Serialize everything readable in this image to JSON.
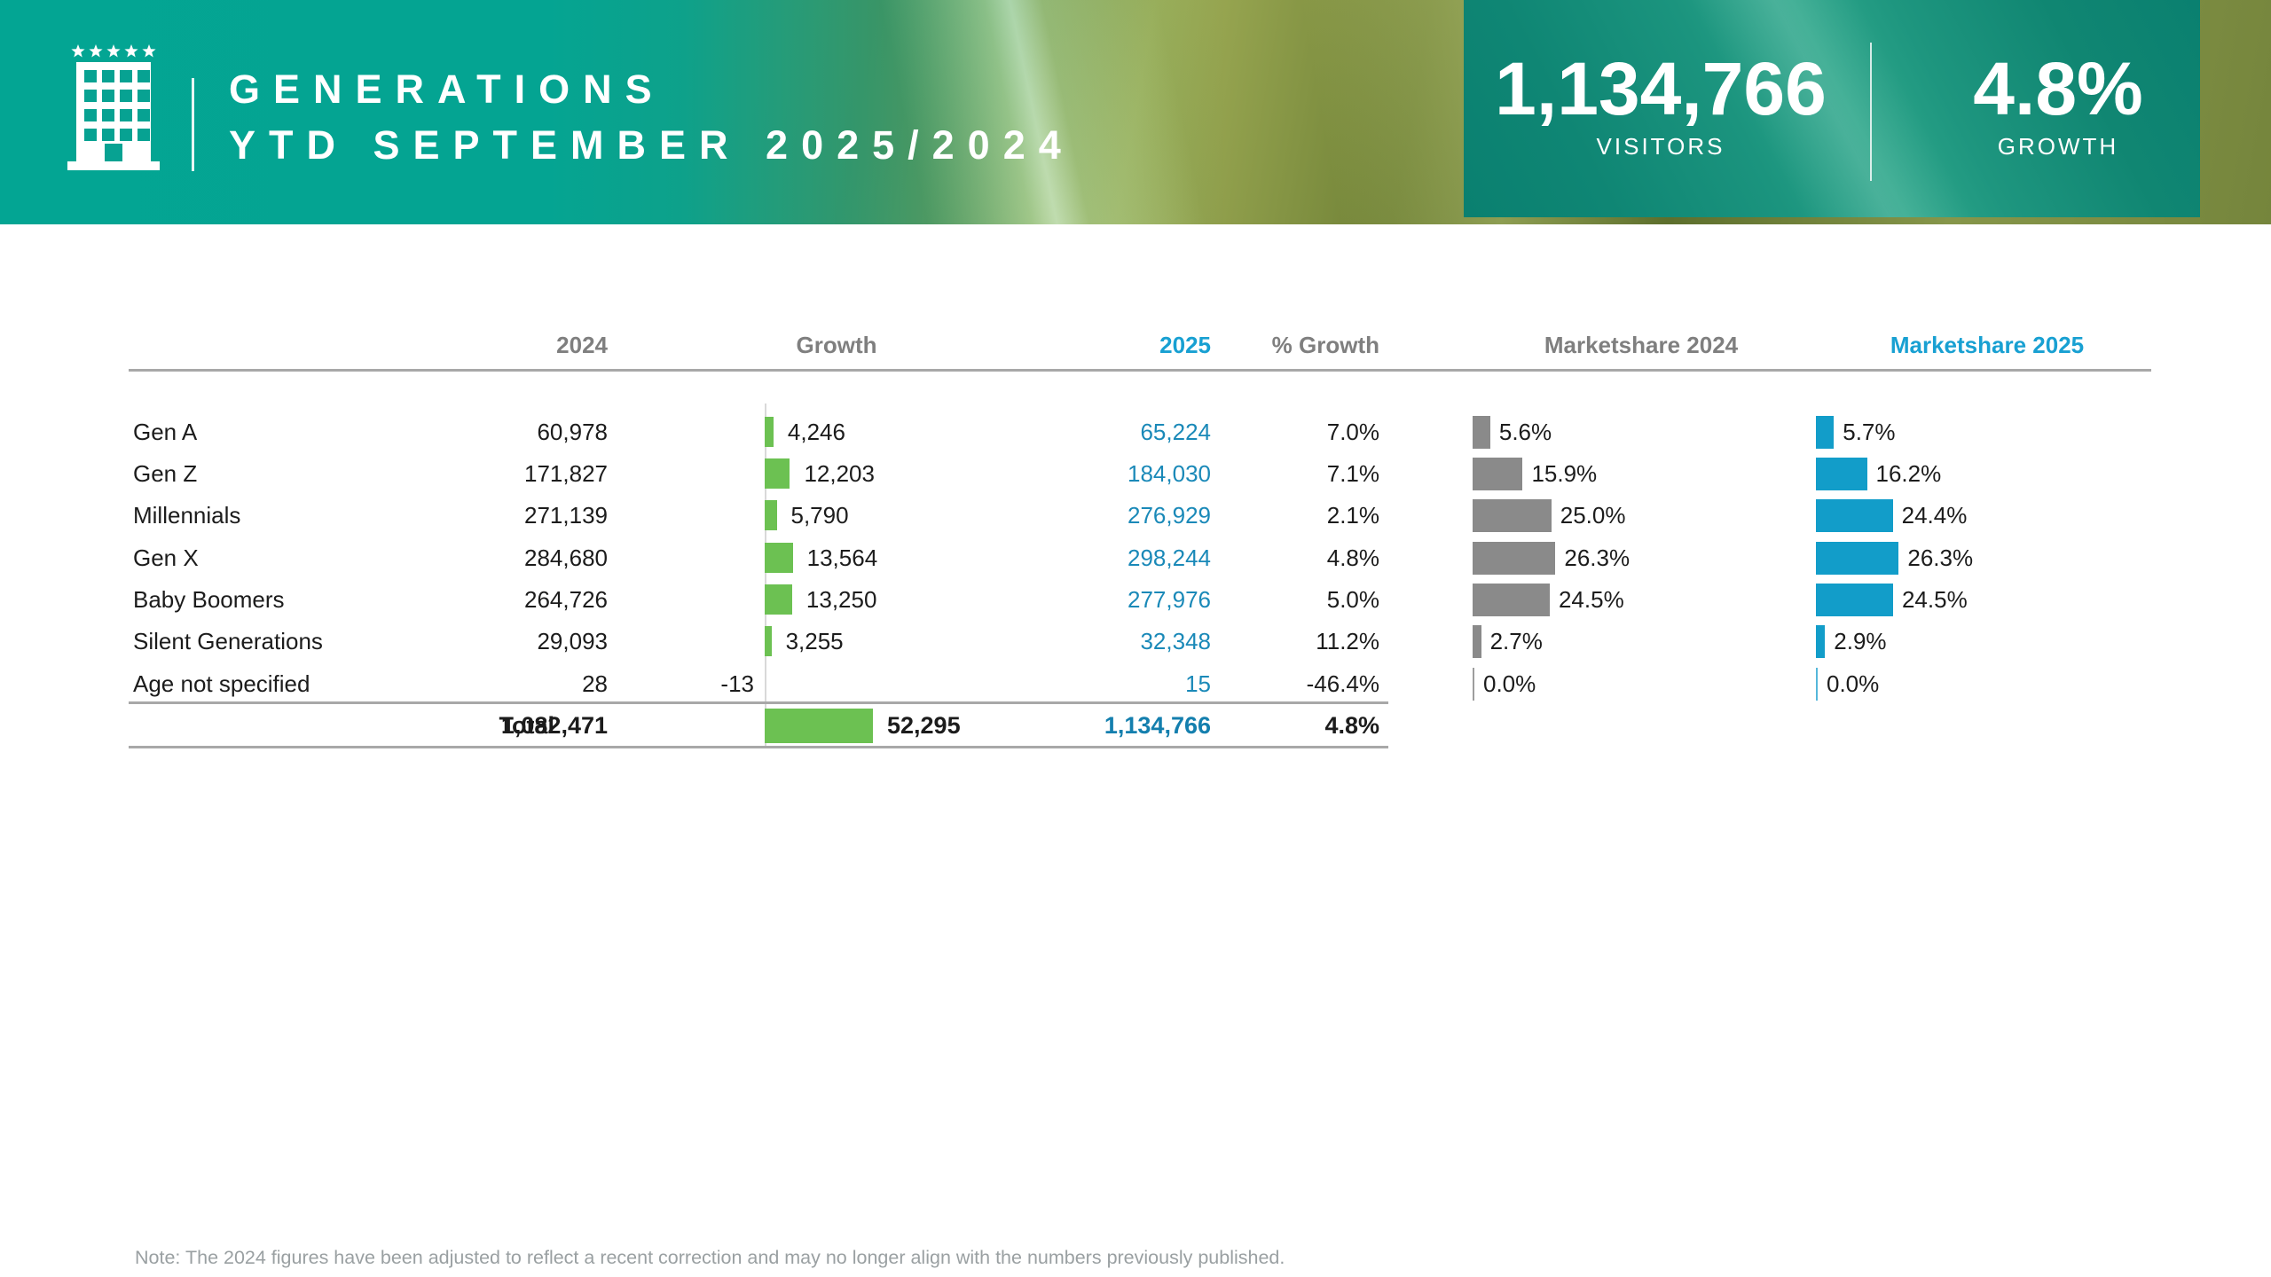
{
  "header": {
    "title_line1": "GENERATIONS",
    "title_line2": "YTD SEPTEMBER 2025/2024",
    "logo": {
      "name": "hotel-building-logo",
      "stars": 5
    },
    "stats": [
      {
        "value": "1,134,766",
        "label": "VISITORS"
      },
      {
        "value": "4.8%",
        "label": "GROWTH"
      }
    ],
    "colors": {
      "accent_teal": "#03a593",
      "panel_teal": "#148d79"
    }
  },
  "table": {
    "headers": {
      "y2024": "2024",
      "growth": "Growth",
      "y2025": "2025",
      "pct_growth": "% Growth",
      "ms2024": "Marketshare 2024",
      "ms2025": "Marketshare 2025"
    },
    "rows": [
      {
        "label": "Gen A",
        "v2024": "60,978",
        "growth": "4,246",
        "v2025": "65,224",
        "pct": "7.0%",
        "ms2024": "5.6%",
        "ms2025": "5.7%"
      },
      {
        "label": "Gen Z",
        "v2024": "171,827",
        "growth": "12,203",
        "v2025": "184,030",
        "pct": "7.1%",
        "ms2024": "15.9%",
        "ms2025": "16.2%"
      },
      {
        "label": "Millennials",
        "v2024": "271,139",
        "growth": "5,790",
        "v2025": "276,929",
        "pct": "2.1%",
        "ms2024": "25.0%",
        "ms2025": "24.4%"
      },
      {
        "label": "Gen X",
        "v2024": "284,680",
        "growth": "13,564",
        "v2025": "298,244",
        "pct": "4.8%",
        "ms2024": "26.3%",
        "ms2025": "26.3%"
      },
      {
        "label": "Baby Boomers",
        "v2024": "264,726",
        "growth": "13,250",
        "v2025": "277,976",
        "pct": "5.0%",
        "ms2024": "24.5%",
        "ms2025": "24.5%"
      },
      {
        "label": "Silent Generations",
        "v2024": "29,093",
        "growth": "3,255",
        "v2025": "32,348",
        "pct": "11.2%",
        "ms2024": "2.7%",
        "ms2025": "2.9%"
      },
      {
        "label": "Age not specified",
        "v2024": "28",
        "growth": "-13",
        "v2025": "15",
        "pct": "-46.4%",
        "ms2024": "0.0%",
        "ms2025": "0.0%"
      }
    ],
    "total": {
      "label": "Total",
      "v2024": "1,082,471",
      "growth": "52,295",
      "v2025": "1,134,766",
      "pct": "4.8%"
    },
    "colors": {
      "growth_green": "#6cc152",
      "bar_gray": "#8a8a8a",
      "bar_blue": "#129dc9",
      "value_blue": "#1a89b8",
      "header_gray": "#7f7f7f"
    }
  },
  "note": "Note: The 2024 figures have been adjusted to reflect a recent correction and may no longer align with the numbers previously published.",
  "chart_data": {
    "type": "table",
    "title": "GENERATIONS YTD SEPTEMBER 2025/2024",
    "categories": [
      "Gen A",
      "Gen Z",
      "Millennials",
      "Gen X",
      "Baby Boomers",
      "Silent Generations",
      "Age not specified",
      "Total"
    ],
    "series": [
      {
        "name": "2024",
        "values": [
          60978,
          171827,
          271139,
          284680,
          264726,
          29093,
          28,
          1082471
        ]
      },
      {
        "name": "Growth",
        "values": [
          4246,
          12203,
          5790,
          13564,
          13250,
          3255,
          -13,
          52295
        ]
      },
      {
        "name": "2025",
        "values": [
          65224,
          184030,
          276929,
          298244,
          277976,
          32348,
          15,
          1134766
        ]
      },
      {
        "name": "% Growth",
        "values": [
          7.0,
          7.1,
          2.1,
          4.8,
          5.0,
          11.2,
          -46.4,
          4.8
        ]
      },
      {
        "name": "Marketshare 2024",
        "values": [
          5.6,
          15.9,
          25.0,
          26.3,
          24.5,
          2.7,
          0.0,
          null
        ]
      },
      {
        "name": "Marketshare 2025",
        "values": [
          5.7,
          16.2,
          24.4,
          26.3,
          24.5,
          2.9,
          0.0,
          null
        ]
      }
    ],
    "legend_position": "none",
    "grid": false,
    "kpis": {
      "visitors": 1134766,
      "growth_pct": 4.8
    }
  }
}
